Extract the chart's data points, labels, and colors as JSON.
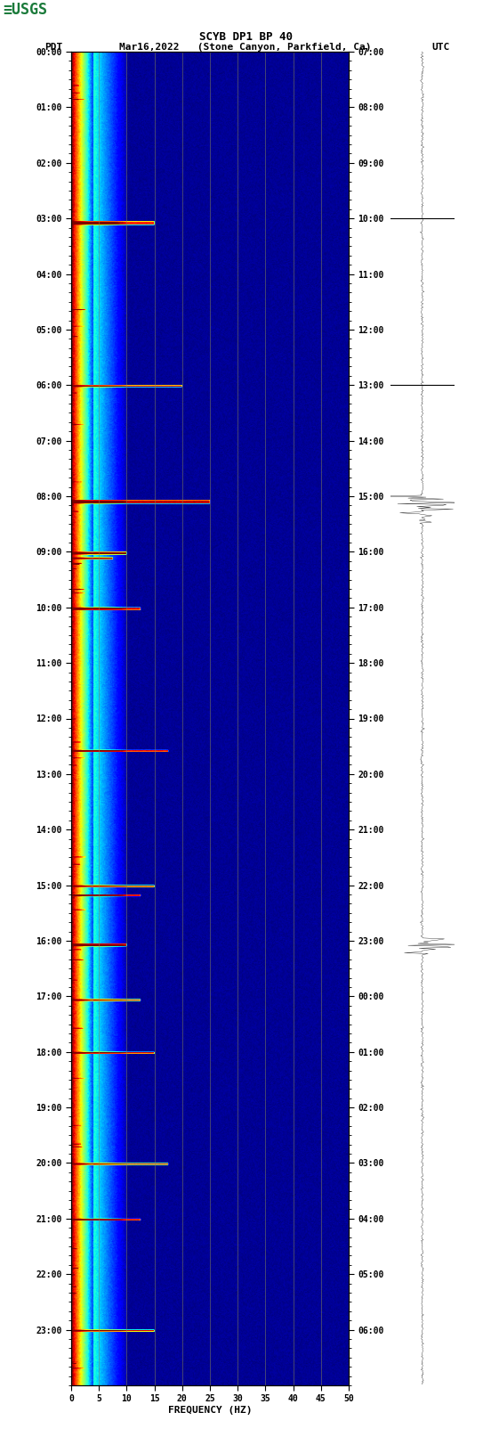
{
  "title_line1": "SCYB DP1 BP 40",
  "title_line2_left": "PDT   Mar16,2022   (Stone Canyon, Parkfield, Ca)",
  "title_line2_right": "UTC",
  "xlabel": "FREQUENCY (HZ)",
  "freq_min": 0,
  "freq_max": 50,
  "freq_ticks": [
    0,
    5,
    10,
    15,
    20,
    25,
    30,
    35,
    40,
    45,
    50
  ],
  "left_time_labels": [
    "00:00",
    "01:00",
    "02:00",
    "03:00",
    "04:00",
    "05:00",
    "06:00",
    "07:00",
    "08:00",
    "09:00",
    "10:00",
    "11:00",
    "12:00",
    "13:00",
    "14:00",
    "15:00",
    "16:00",
    "17:00",
    "18:00",
    "19:00",
    "20:00",
    "21:00",
    "22:00",
    "23:00"
  ],
  "right_time_labels": [
    "07:00",
    "08:00",
    "09:00",
    "10:00",
    "11:00",
    "12:00",
    "13:00",
    "14:00",
    "15:00",
    "16:00",
    "17:00",
    "18:00",
    "19:00",
    "20:00",
    "21:00",
    "22:00",
    "23:00",
    "00:00",
    "01:00",
    "02:00",
    "03:00",
    "04:00",
    "05:00",
    "06:00"
  ],
  "bg_color": "white",
  "spectrogram_cmap": "jet",
  "n_time": 1440,
  "n_freq": 500,
  "seed": 42,
  "grid_color": "#888855",
  "grid_freq_positions": [
    5,
    10,
    15,
    20,
    25,
    30,
    35,
    40,
    45
  ],
  "usgs_color": "#1a7a3a"
}
